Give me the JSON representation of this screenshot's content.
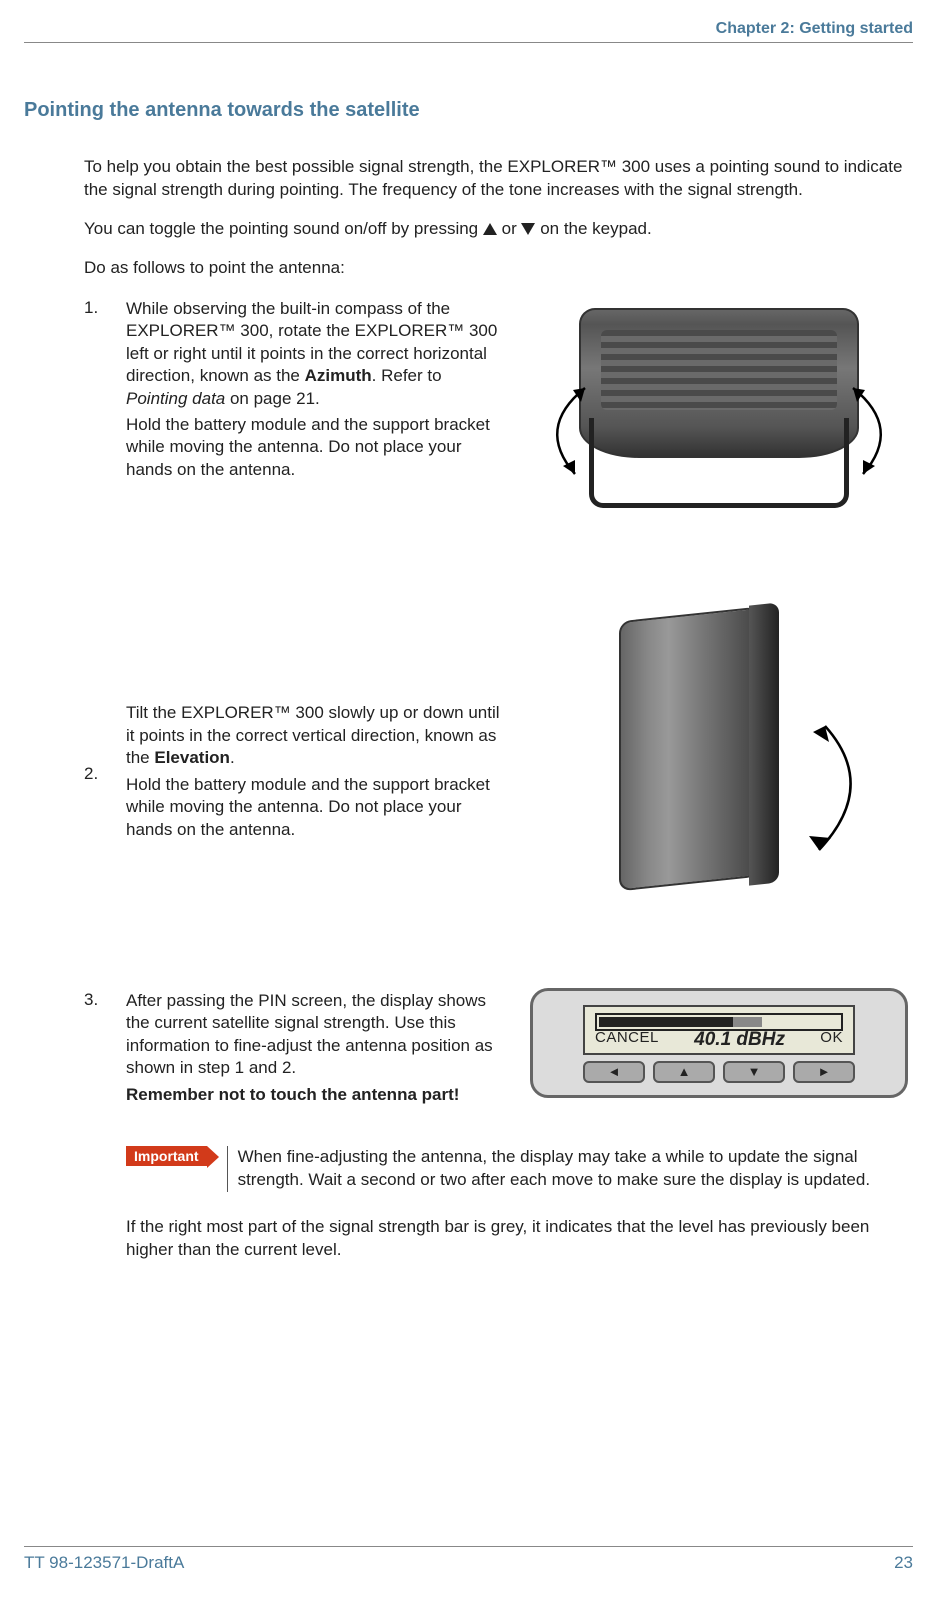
{
  "header": {
    "chapter": "Chapter 2: Getting started"
  },
  "section_title": "Pointing the antenna towards the satellite",
  "intro": {
    "p1": "To help you obtain the best possible signal strength, the EXPLORER™ 300 uses a pointing sound to indicate the signal strength during pointing. The frequency of the tone increases with the signal strength.",
    "p2_pre": "You can toggle the pointing sound on/off by pressing ",
    "p2_mid": " or ",
    "p2_post": "on the keypad.",
    "p3": "Do as follows to point the antenna:"
  },
  "steps": {
    "s1": {
      "num": "1.",
      "a_pre": "While observing the built-in compass of the EXPLORER™ 300, rotate the EXPLORER™ 300 left or right until it points in the correct horizontal direction, known as the ",
      "a_bold": "Azimuth",
      "a_mid": ". Refer to ",
      "a_ital": "Pointing data",
      "a_post": " on page 21.",
      "b": "Hold the battery module and the support bracket while moving the antenna. Do not place your hands on the antenna."
    },
    "s2": {
      "num": "2.",
      "a_pre": "Tilt the EXPLORER™ 300 slowly up or down until it points in the correct vertical direction, known as the ",
      "a_bold": "Elevation",
      "a_post": ".",
      "b": "Hold the battery module and the support bracket while moving the antenna. Do not place your hands on the antenna."
    },
    "s3": {
      "num": "3.",
      "a": "After passing the PIN screen, the display shows the current satellite signal strength. Use this information to fine-adjust the antenna position as shown in step 1 and 2.",
      "b": "Remember not to touch the antenna part!"
    }
  },
  "display": {
    "cancel": "CANCEL",
    "signal": "40.1 dBHz",
    "ok": "OK",
    "bar_fill_pct": 55,
    "bar_grey_pct": 12
  },
  "important": {
    "tag": "Important",
    "text": "When fine-adjusting the antenna, the display may take a while to update the signal strength. Wait a second or two after each move to make sure the display is updated."
  },
  "after_important": "If the right most part of the signal strength bar is grey, it indicates that the level has previously been higher than the current level.",
  "footer": {
    "doc_id": "TT 98-123571-DraftA",
    "page": "23"
  },
  "colors": {
    "accent": "#4a7a9a",
    "important_bg": "#d23a1a"
  }
}
